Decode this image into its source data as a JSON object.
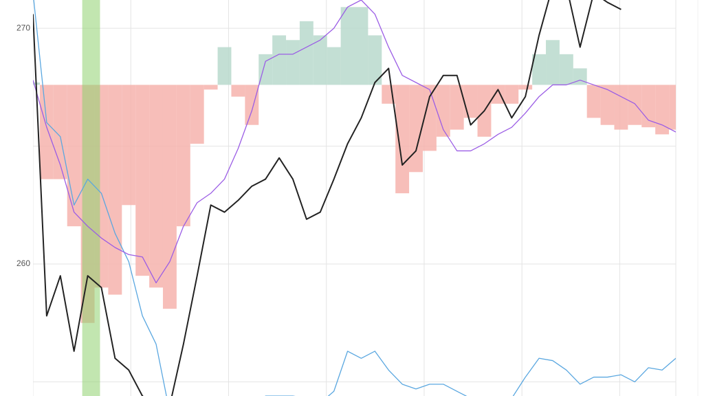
{
  "chart_data": {
    "type": "line",
    "x": [
      0,
      1,
      2,
      3,
      4,
      5,
      6,
      7,
      8,
      9,
      10,
      11,
      12,
      13,
      14,
      15,
      16,
      17,
      18,
      19,
      20,
      21,
      22,
      23,
      24,
      25,
      26,
      27,
      28,
      29,
      30,
      31,
      32,
      33,
      34,
      35,
      36,
      37,
      38,
      39,
      40,
      41,
      42,
      43,
      44,
      45,
      46,
      47
    ],
    "xlim": [
      0,
      47
    ],
    "xgrid": [
      0,
      7.15,
      14.3,
      21.45,
      28.6,
      35.75,
      42.9
    ],
    "ylim": [
      254.4,
      271.2
    ],
    "yticks": [
      260,
      270
    ],
    "ygrid": [
      255,
      260,
      265,
      270
    ],
    "grid": true,
    "highlight": {
      "range": [
        3.6,
        4.9
      ],
      "color": "#8fd16f"
    },
    "histogram": {
      "base": 267.6,
      "up_color": "#b9d9cc",
      "down_color": "#f6b3ad",
      "values": [
        267.7,
        263.6,
        263.6,
        261.6,
        257.5,
        259.0,
        258.7,
        262.5,
        259.5,
        259.0,
        258.1,
        261.6,
        265.1,
        267.4,
        269.2,
        267.1,
        265.9,
        268.9,
        269.7,
        269.5,
        270.3,
        269.7,
        269.2,
        270.9,
        270.9,
        269.7,
        266.8,
        263.0,
        263.9,
        264.8,
        265.4,
        265.7,
        266.2,
        265.4,
        266.8,
        266.8,
        267.4,
        268.9,
        269.5,
        268.9,
        268.3,
        266.2,
        265.9,
        265.7,
        265.9,
        265.8,
        265.5,
        265.7
      ]
    },
    "series": [
      {
        "color": "#5aa7e0",
        "values": [
          271.5,
          266.0,
          265.4,
          262.5,
          263.6,
          263.0,
          261.3,
          260.1,
          257.8,
          256.6,
          253.7,
          253.7,
          253.7,
          253.7,
          253.7,
          253.7,
          253.7,
          254.4,
          254.4,
          254.4,
          254.3,
          254.1,
          254.6,
          256.3,
          256.0,
          256.3,
          255.5,
          254.9,
          254.7,
          254.9,
          254.9,
          254.6,
          254.3,
          254.1,
          254.0,
          254.3,
          255.2,
          256.0,
          255.9,
          255.5,
          254.9,
          255.2,
          255.2,
          255.3,
          255.0,
          255.6,
          255.5,
          256.0
        ]
      },
      {
        "color": "#9b5de5",
        "values": [
          267.8,
          265.8,
          264.2,
          262.2,
          261.6,
          261.1,
          260.7,
          260.4,
          260.3,
          259.2,
          260.1,
          261.6,
          262.6,
          263.0,
          263.6,
          264.9,
          266.5,
          268.6,
          268.9,
          268.9,
          269.2,
          269.5,
          270.0,
          270.9,
          271.2,
          270.6,
          269.2,
          268.0,
          267.7,
          267.4,
          265.7,
          264.8,
          264.8,
          265.1,
          265.5,
          265.8,
          266.4,
          267.1,
          267.6,
          267.6,
          267.8,
          267.6,
          267.4,
          267.1,
          266.8,
          266.1,
          265.9,
          265.6
        ]
      },
      {
        "color": "#222222",
        "values": [
          270.6,
          257.8,
          259.5,
          256.3,
          259.5,
          259.0,
          256.0,
          255.5,
          254.4,
          254.0,
          254.0,
          256.6,
          259.5,
          262.5,
          262.2,
          262.7,
          263.3,
          263.6,
          264.5,
          263.6,
          261.9,
          262.2,
          263.6,
          265.1,
          266.2,
          267.7,
          268.3,
          264.2,
          264.8,
          267.1,
          268.0,
          268.0,
          265.9,
          266.5,
          267.4,
          266.2,
          267.1,
          269.7,
          271.8,
          271.8,
          269.2,
          271.5,
          271.1,
          270.8,
          null,
          null,
          null,
          null
        ]
      }
    ]
  }
}
